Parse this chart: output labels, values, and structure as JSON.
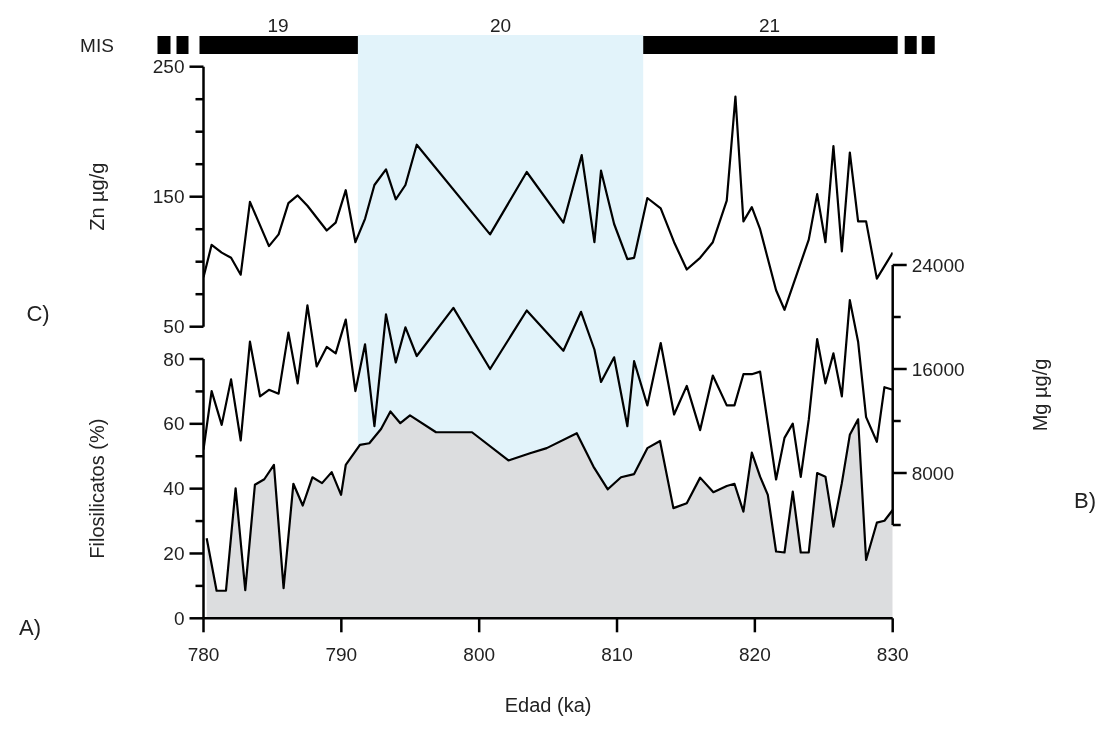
{
  "chart_data": [
    {
      "type": "line",
      "ylabel": "Zn µg/g",
      "xlim": [
        780,
        830
      ],
      "ylim": [
        50,
        250
      ],
      "yticks": [
        50,
        {
          "value": 75,
          "label": null
        },
        {
          "value": 100,
          "label": null
        },
        {
          "value": 125,
          "label": null
        },
        150,
        {
          "value": 175,
          "label": null
        },
        {
          "value": 200,
          "label": null
        },
        {
          "value": 225,
          "label": null
        },
        250
      ],
      "tick_labels": "y",
      "bands": [
        {
          "axis": "x",
          "from": 791.2,
          "to": 811.9,
          "label": "20",
          "color": "#e2f3fa"
        }
      ],
      "annotations": [
        "C)",
        "MIS",
        "19",
        "21"
      ],
      "series": [
        {
          "color": "#000000",
          "x": [
            780.0,
            780.59,
            781.32,
            782.0,
            782.7,
            783.37,
            784.75,
            785.45,
            786.16,
            786.83,
            787.54,
            788.94,
            789.59,
            790.32,
            791.02,
            791.72,
            792.4,
            793.24,
            793.95,
            794.65,
            795.47,
            800.79,
            803.45,
            806.11,
            807.44,
            808.36,
            808.84,
            809.79,
            810.75,
            811.24,
            812.2,
            813.17,
            814.14,
            815.06,
            816.03,
            816.95,
            817.96,
            818.59,
            819.17,
            819.78,
            820.38,
            821.54,
            822.15,
            823.91,
            824.52,
            825.12,
            825.7,
            826.31,
            826.89,
            827.49,
            828.07,
            828.85,
            830.0
          ],
          "values": [
            88,
            113,
            107,
            103,
            90,
            146,
            112,
            121,
            145,
            151,
            143,
            124,
            130,
            155,
            115,
            133,
            159,
            171,
            148,
            159,
            190,
            121,
            169,
            130,
            182,
            115,
            170,
            129,
            102,
            103,
            149,
            141,
            115,
            94,
            103,
            115,
            147,
            227,
            131,
            142,
            125,
            78,
            63,
            117,
            152,
            115,
            189,
            108,
            184,
            131,
            131,
            87,
            107
          ]
        }
      ]
    },
    {
      "type": "line",
      "xlim": [
        780,
        830
      ],
      "y2label": "Mg µg/g",
      "y2lim": [
        4000,
        24000
      ],
      "y2ticks": [
        {
          "value": 4000,
          "label": null
        },
        8000,
        {
          "value": 12000,
          "label": null
        },
        16000,
        {
          "value": 20000,
          "label": null
        },
        24000
      ],
      "tick_labels": "y",
      "annotations": [
        "B)"
      ],
      "series": [
        {
          "color": "#000000",
          "axis": "y2",
          "x": [
            780.0,
            780.59,
            781.32,
            782.0,
            782.7,
            783.37,
            784.1,
            784.75,
            785.45,
            786.16,
            786.83,
            787.54,
            788.21,
            788.94,
            789.59,
            790.32,
            791.02,
            791.72,
            792.4,
            793.24,
            793.95,
            794.65,
            795.47,
            798.13,
            800.79,
            803.45,
            806.11,
            807.39,
            808.36,
            808.84,
            809.79,
            810.75,
            811.24,
            812.2,
            813.17,
            814.14,
            815.06,
            816.03,
            816.95,
            817.96,
            818.52,
            819.17,
            819.78,
            820.38,
            821.54,
            822.15,
            822.75,
            823.33,
            823.91,
            824.52,
            825.12,
            825.7,
            826.31,
            826.89,
            827.49,
            828.07,
            828.85,
            829.4,
            830.0
          ],
          "values": [
            9800,
            14300,
            11700,
            15200,
            10500,
            18100,
            13900,
            14400,
            14100,
            18800,
            14900,
            20900,
            16200,
            17700,
            17200,
            19800,
            14300,
            17900,
            11600,
            20200,
            16500,
            19200,
            17000,
            20700,
            16000,
            20500,
            17400,
            20400,
            17500,
            15000,
            16900,
            11600,
            16600,
            13200,
            18000,
            12500,
            14700,
            11300,
            15500,
            13200,
            13200,
            15600,
            15600,
            15800,
            7500,
            10700,
            11800,
            7700,
            12100,
            18300,
            14900,
            17200,
            13900,
            21300,
            18100,
            12300,
            10400,
            14600,
            14400
          ]
        }
      ]
    },
    {
      "type": "area",
      "xlabel": "Edad (ka)",
      "ylabel": "Filosilicatos (%)",
      "xlim": [
        780,
        830
      ],
      "xticks": [
        780,
        790,
        800,
        810,
        820,
        830
      ],
      "ylim": [
        0,
        80
      ],
      "yticks": [
        0,
        {
          "value": 10,
          "label": null
        },
        20,
        {
          "value": 30,
          "label": null
        },
        40,
        {
          "value": 50,
          "label": null
        },
        60,
        {
          "value": 70,
          "label": null
        },
        80
      ],
      "annotations": [
        "A)"
      ],
      "series": [
        {
          "color": "#dcdddf",
          "x": [
            780.23,
            780.95,
            781.63,
            782.33,
            783.03,
            783.73,
            784.41,
            785.11,
            785.81,
            786.52,
            787.2,
            787.9,
            788.6,
            789.3,
            789.98,
            790.32,
            791.35,
            792.03,
            792.88,
            793.56,
            794.28,
            794.98,
            796.87,
            799.48,
            802.12,
            803.69,
            804.9,
            807.08,
            808.29,
            809.33,
            810.29,
            811.24,
            812.2,
            813.12,
            814.09,
            815.06,
            816.03,
            816.99,
            817.96,
            818.52,
            819.17,
            819.78,
            820.38,
            820.94,
            821.54,
            822.15,
            822.75,
            823.33,
            823.91,
            824.52,
            825.12,
            825.7,
            826.31,
            826.89,
            827.49,
            828.07,
            828.85,
            829.4,
            830.0
          ],
          "values": [
            24.7,
            8.5,
            8.5,
            40.1,
            8.7,
            41.2,
            42.9,
            47.3,
            9.3,
            41.5,
            34.8,
            43.5,
            41.7,
            45.1,
            38.1,
            47.3,
            53.5,
            54.0,
            58.4,
            63.8,
            60.2,
            62.6,
            57.4,
            57.4,
            48.7,
            50.9,
            52.5,
            57.1,
            46.8,
            39.8,
            43.5,
            44.5,
            52.5,
            54.7,
            34.0,
            35.5,
            43.4,
            38.9,
            40.8,
            41.5,
            32.9,
            51.1,
            43.7,
            38.1,
            20.6,
            20.3,
            39.1,
            20.3,
            20.3,
            44.8,
            43.7,
            28.3,
            41.7,
            56.6,
            61.4,
            18.0,
            29.5,
            30.1,
            33.4
          ]
        }
      ]
    }
  ]
}
